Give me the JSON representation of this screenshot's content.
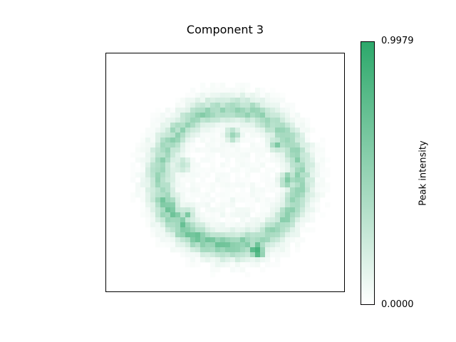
{
  "chart_data": {
    "type": "heatmap",
    "title": "Component 3",
    "colorbar": {
      "label": "Peak intensity",
      "min": 0.0,
      "max": 0.9979,
      "tick_labels": [
        "0.9979",
        "0.0000"
      ],
      "color_low": "#ffffff",
      "color_high": "#2ca86a"
    },
    "grid_size": 48,
    "ring": {
      "center_col": 24.5,
      "center_row": 24.5,
      "radius": 14.0,
      "width": 2.2
    },
    "hotspots": [
      {
        "col": 30,
        "row": 39,
        "value": 0.9979
      },
      {
        "col": 36,
        "row": 25,
        "value": 0.65
      },
      {
        "col": 20,
        "row": 38,
        "value": 0.55
      },
      {
        "col": 34,
        "row": 18,
        "value": 0.5
      },
      {
        "col": 25,
        "row": 16,
        "value": 0.45
      },
      {
        "col": 16,
        "row": 32,
        "value": 0.5
      },
      {
        "col": 15,
        "row": 22,
        "value": 0.35
      },
      {
        "col": 37,
        "row": 30,
        "value": 0.45
      }
    ],
    "legend": "none",
    "axes_ticks": "none"
  }
}
